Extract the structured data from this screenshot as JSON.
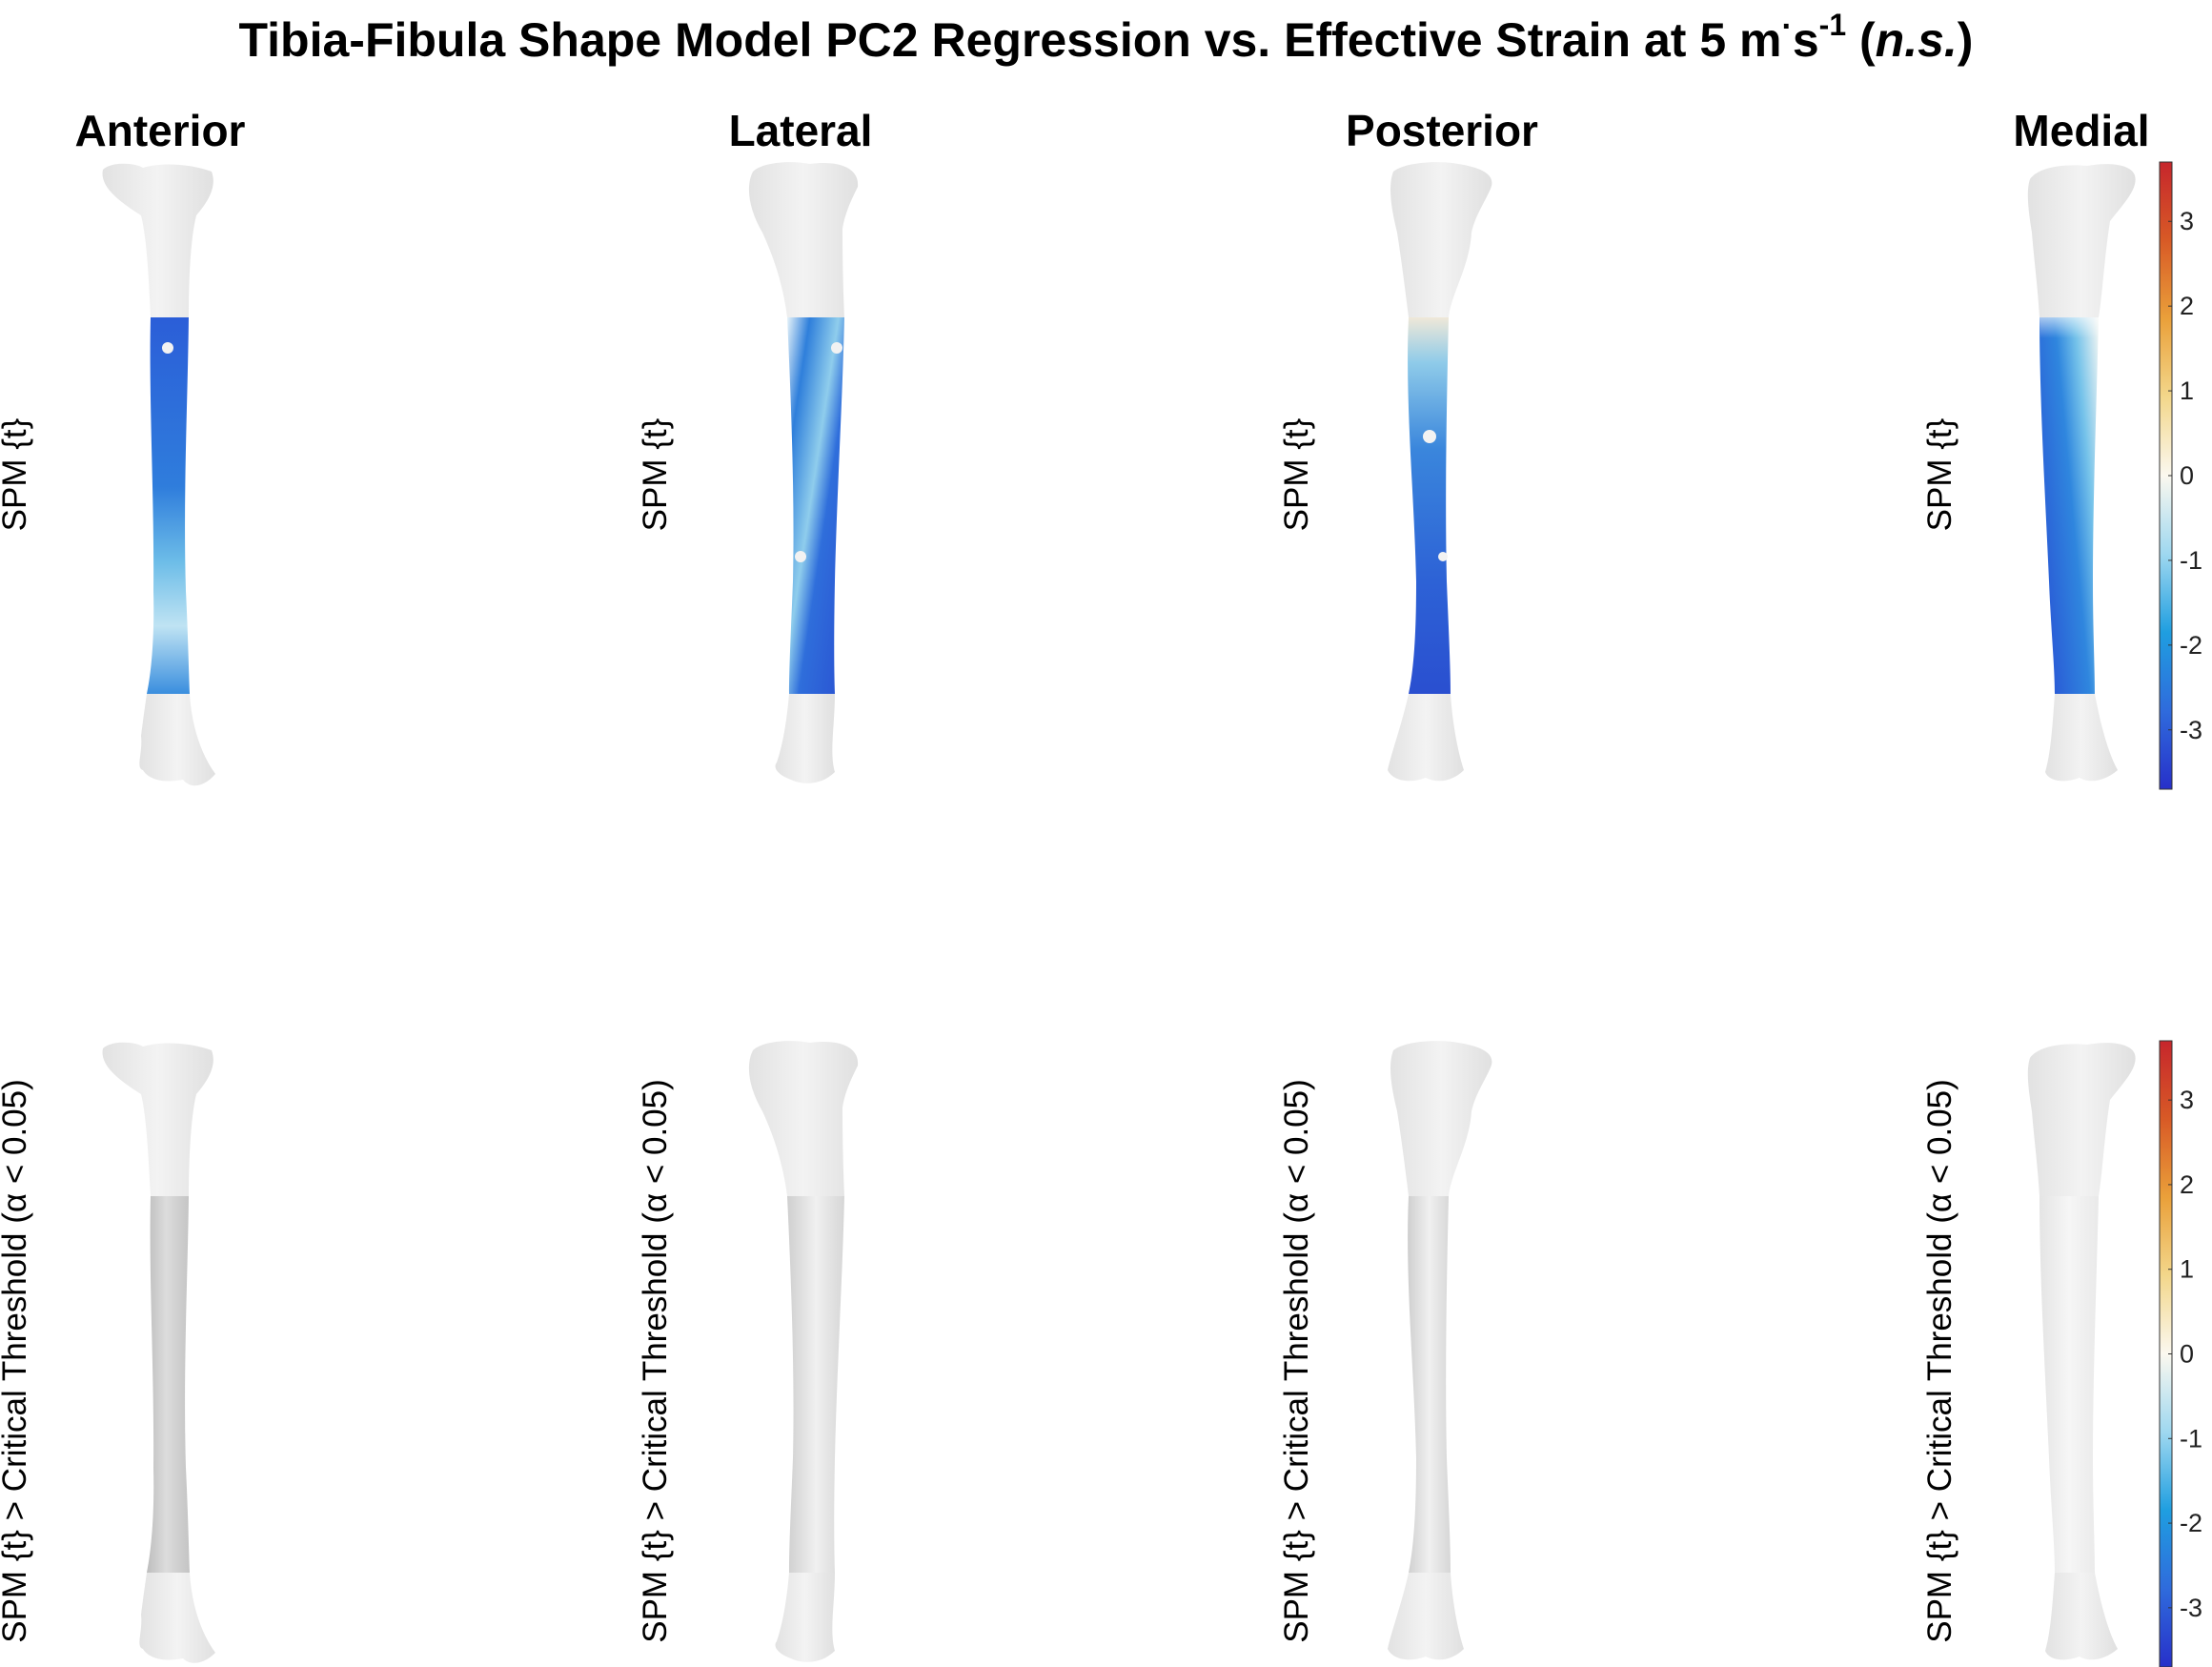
{
  "title": {
    "main": "Tibia-Fibula Shape Model PC2 Regression vs. Effective Strain at 5 m",
    "dot": "·",
    "s": "s",
    "exponent": "-1",
    "open": " (",
    "ns": "n.s.",
    "close": ")"
  },
  "views": [
    "Anterior",
    "Lateral",
    "Posterior",
    "Medial"
  ],
  "rows": {
    "top": {
      "ylabel": "SPM {t}"
    },
    "bottom": {
      "ylabel": "SPM {t} > Critical Threshold (α < 0.05)"
    }
  },
  "colorbar": {
    "ticks": [
      "3",
      "2",
      "1",
      "0",
      "-1",
      "-2",
      "-3"
    ],
    "range": [
      -3.7,
      3.7
    ],
    "colors": [
      "#2730c9",
      "#2f6bdc",
      "#1f9ee0",
      "#9fd8f0",
      "#fbf8ef",
      "#f3d78b",
      "#eaa03a",
      "#d85a26",
      "#c6262c"
    ]
  },
  "colors": {
    "bone": "#ececec",
    "spm_low": "#2a57d6",
    "spm_mid": "#2c8fe0",
    "spm_light": "#d7eef8",
    "threshold_shaft": "#d3d3d3"
  }
}
